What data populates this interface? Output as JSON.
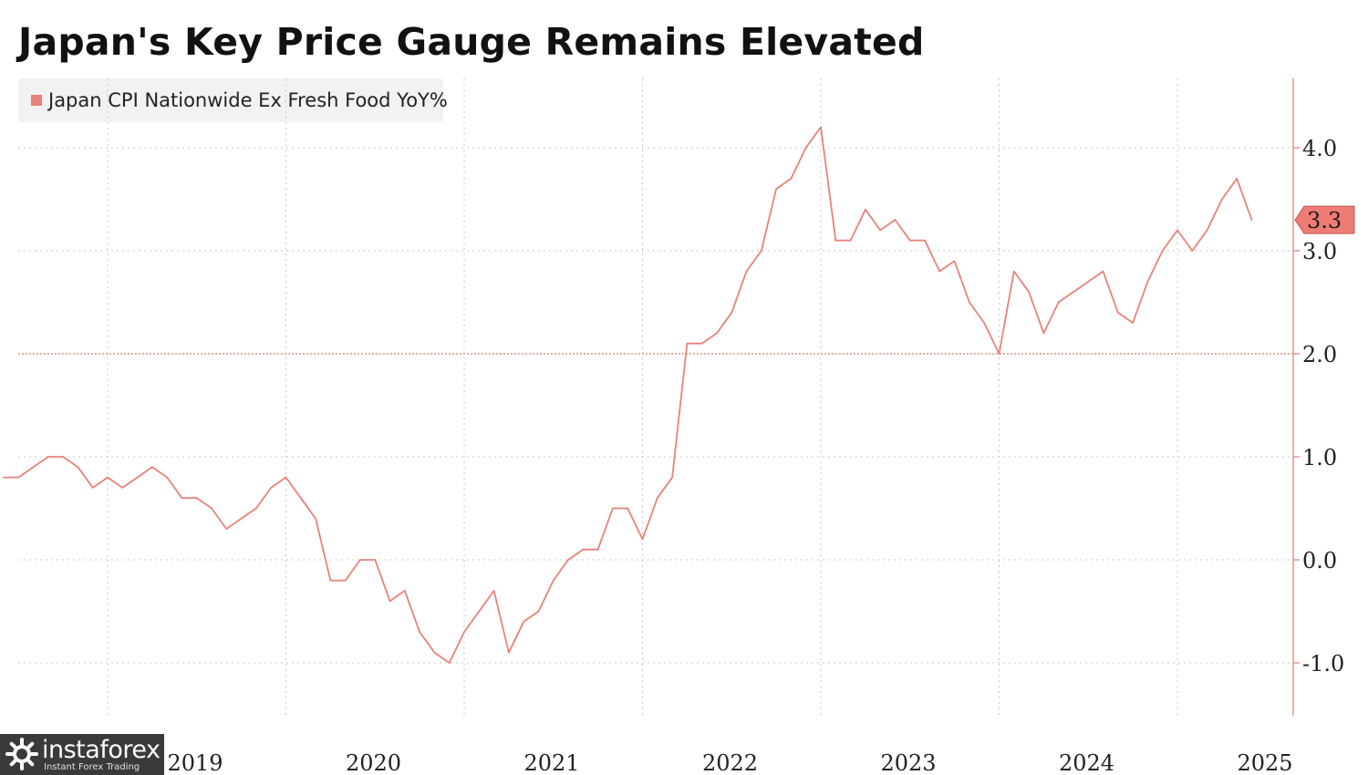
{
  "chart_data": {
    "type": "line",
    "title": "Japan's Key Price Gauge Remains Elevated",
    "series": [
      {
        "name": "Japan CPI Nationwide Ex Fresh Food YoY%",
        "x": [
          "2018-06",
          "2018-07",
          "2018-08",
          "2018-09",
          "2018-10",
          "2018-11",
          "2018-12",
          "2019-01",
          "2019-02",
          "2019-03",
          "2019-04",
          "2019-05",
          "2019-06",
          "2019-07",
          "2019-08",
          "2019-09",
          "2019-10",
          "2019-11",
          "2019-12",
          "2020-01",
          "2020-02",
          "2020-03",
          "2020-04",
          "2020-05",
          "2020-06",
          "2020-07",
          "2020-08",
          "2020-09",
          "2020-10",
          "2020-11",
          "2020-12",
          "2021-01",
          "2021-02",
          "2021-03",
          "2021-04",
          "2021-05",
          "2021-06",
          "2021-07",
          "2021-08",
          "2021-09",
          "2021-10",
          "2021-11",
          "2021-12",
          "2022-01",
          "2022-02",
          "2022-03",
          "2022-04",
          "2022-05",
          "2022-06",
          "2022-07",
          "2022-08",
          "2022-09",
          "2022-10",
          "2022-11",
          "2022-12",
          "2023-01",
          "2023-02",
          "2023-03",
          "2023-04",
          "2023-05",
          "2023-06",
          "2023-07",
          "2023-08",
          "2023-09",
          "2023-10",
          "2023-11",
          "2023-12",
          "2024-01",
          "2024-02",
          "2024-03",
          "2024-04",
          "2024-05",
          "2024-06",
          "2024-07",
          "2024-08",
          "2024-09",
          "2024-10",
          "2024-11",
          "2024-12",
          "2025-01",
          "2025-02",
          "2025-03",
          "2025-04",
          "2025-05",
          "2025-06"
        ],
        "values": [
          0.8,
          0.8,
          0.9,
          1.0,
          1.0,
          0.9,
          0.7,
          0.8,
          0.7,
          0.8,
          0.9,
          0.8,
          0.6,
          0.6,
          0.5,
          0.3,
          0.4,
          0.5,
          0.7,
          0.8,
          0.6,
          0.4,
          -0.2,
          -0.2,
          0.0,
          0.0,
          -0.4,
          -0.3,
          -0.7,
          -0.9,
          -1.0,
          -0.7,
          -0.5,
          -0.3,
          -0.9,
          -0.6,
          -0.5,
          -0.2,
          0.0,
          0.1,
          0.1,
          0.5,
          0.5,
          0.2,
          0.6,
          0.8,
          2.1,
          2.1,
          2.2,
          2.4,
          2.8,
          3.0,
          3.6,
          3.7,
          4.0,
          4.2,
          3.1,
          3.1,
          3.4,
          3.2,
          3.3,
          3.1,
          3.1,
          2.8,
          2.9,
          2.5,
          2.3,
          2.0,
          2.8,
          2.6,
          2.2,
          2.5,
          2.6,
          2.7,
          2.8,
          2.4,
          2.3,
          2.7,
          3.0,
          3.2,
          3.0,
          3.2,
          3.5,
          3.7,
          3.3
        ],
        "color": "#e8827a"
      }
    ],
    "x_ticks": [
      "2019",
      "2020",
      "2021",
      "2022",
      "2023",
      "2024",
      "2025"
    ],
    "y_ticks": [
      "4.0",
      "3.0",
      "2.0",
      "1.0",
      "0.0",
      "-1.0"
    ],
    "ylim": [
      -1.5,
      4.65
    ],
    "last_value_label": "3.3",
    "reference_line": 2.0,
    "grid": true,
    "legend_position": "top-left",
    "xlabel": "",
    "ylabel": ""
  },
  "colors": {
    "line": "#e8827a",
    "axis": "#e39590",
    "grid": "#c8c8c8",
    "reference": "#e2b0a6",
    "label_box": "#ee7c74"
  },
  "watermark": {
    "name": "instaforex",
    "tagline": "Instant Forex Trading",
    "icon": "gear-icon"
  }
}
